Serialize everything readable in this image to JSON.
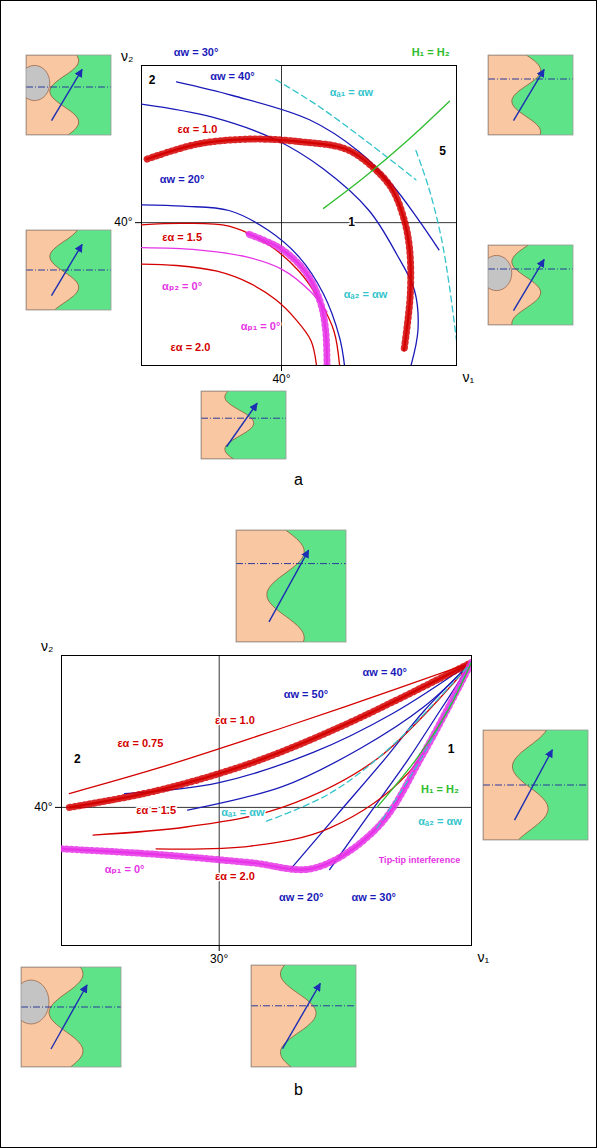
{
  "chart_data": [
    {
      "type": "line",
      "panel": "a",
      "xlabel": "ν₁",
      "ylabel": "ν₂",
      "xlim": [
        20,
        65
      ],
      "ylim": [
        20,
        62
      ],
      "xticks": [
        {
          "value": 40,
          "label": "40°"
        }
      ],
      "yticks": [
        {
          "value": 40,
          "label": "40°"
        }
      ],
      "grid": true,
      "series": [
        {
          "name": "αw = 40°",
          "color": "#1a1ab8",
          "line_style": "solid",
          "x": [
            25,
            33,
            44,
            51,
            55.8,
            59.5,
            62.5
          ],
          "values": [
            59.7,
            57.8,
            54.4,
            50,
            45.3,
            40.5,
            36.2
          ],
          "label_x": 33,
          "label_y": 60.5
        },
        {
          "name": "αw = 30°",
          "color": "#1a1ab8",
          "line_style": "solid",
          "x": [
            20,
            30,
            39.2,
            46,
            52.5,
            56.5,
            59,
            59.5,
            58.5
          ],
          "values": [
            56.6,
            54.8,
            51.6,
            47.5,
            41.7,
            35.5,
            30.5,
            25,
            20
          ],
          "label_x": 27.8,
          "label_y": 63.8
        },
        {
          "name": "αw = 20°",
          "color": "#1a1ab8",
          "line_style": "solid",
          "x": [
            20,
            26,
            32.5,
            38,
            42.5,
            46,
            48.3,
            49
          ],
          "values": [
            42.5,
            42.3,
            41.7,
            39,
            35.2,
            30,
            23.9,
            20
          ],
          "label_x": 25.8,
          "label_y": 46
        },
        {
          "name": "εα = 1.0",
          "color": "#d40000",
          "line_style": "hatched",
          "x": [
            20.8,
            28,
            35.8,
            43,
            49.2,
            53,
            55.8,
            57.5,
            58.3,
            58.4,
            57.5
          ],
          "values": [
            48.9,
            51,
            51.7,
            51.3,
            50.3,
            47.8,
            44.7,
            40.5,
            36.3,
            30,
            22.1
          ],
          "label_x": 28,
          "label_y": 53
        },
        {
          "name": "εα = 1.5",
          "color": "#d40000",
          "line_style": "solid",
          "x": [
            20,
            26,
            32.5,
            38,
            42.5,
            45.5,
            47.5,
            48.3
          ],
          "values": [
            39.7,
            39.9,
            39.5,
            37,
            33.2,
            29,
            24.8,
            20
          ],
          "label_x": 25.8,
          "label_y": 37.9
        },
        {
          "name": "εα = 2.0",
          "color": "#d40000",
          "line_style": "solid",
          "x": [
            20,
            25,
            30.8,
            35.5,
            39.2,
            42,
            44.2,
            45
          ],
          "values": [
            34.2,
            34,
            33.2,
            31.5,
            29.2,
            26.5,
            23.5,
            20
          ],
          "label_x": 27,
          "label_y": 22.5
        },
        {
          "name": "αₚ₂ = 0°",
          "color": "#e633e6",
          "line_style": "solid",
          "x": [
            20,
            28,
            35,
            40,
            44,
            46.5
          ],
          "values": [
            36.5,
            36.2,
            35.2,
            33.5,
            30.5,
            27.5
          ],
          "label_x": 25.8,
          "label_y": 31
        },
        {
          "name": "αₚ₁ = 0°",
          "color": "#e633e6",
          "line_style": "hatched",
          "x": [
            46.5,
            46.3,
            45.5,
            43.5,
            40,
            35
          ],
          "values": [
            20,
            25,
            29,
            33,
            36.3,
            38.5
          ],
          "label_x": 37,
          "label_y": 25.5
        },
        {
          "name": "αₐ₁ = αw",
          "color": "#33c4cc",
          "line_style": "dashed",
          "x": [
            39.2,
            45,
            52,
            59.2
          ],
          "values": [
            60,
            56.5,
            51.5,
            46
          ],
          "label_x": 50,
          "label_y": 58.2
        },
        {
          "name": "αₐ₂ = αw",
          "color": "#33c4cc",
          "line_style": "dashed",
          "x": [
            59.2,
            61,
            62.8,
            64,
            65
          ],
          "values": [
            50.1,
            45,
            38,
            31,
            23.5
          ],
          "label_x": 52,
          "label_y": 30
        },
        {
          "name": "H₁ = H₂",
          "color": "#2ebd2e",
          "line_style": "solid",
          "x": [
            46,
            52,
            58,
            64
          ],
          "values": [
            42,
            46.5,
            51.5,
            57
          ],
          "label_x": 61.3,
          "label_y": 63.8
        }
      ],
      "annotations": [
        {
          "text": "1",
          "x": 50,
          "y": 40,
          "color": "#000000"
        },
        {
          "text": "2",
          "x": 21.5,
          "y": 60,
          "color": "#000000"
        },
        {
          "text": "5",
          "x": 63,
          "y": 50,
          "color": "#000000"
        }
      ]
    },
    {
      "type": "line",
      "panel": "b",
      "xlabel": "ν₁",
      "ylabel": "ν₂",
      "xlim": [
        20,
        46
      ],
      "ylim": [
        30,
        51
      ],
      "xticks": [
        {
          "value": 30,
          "label": "30°"
        }
      ],
      "yticks": [
        {
          "value": 40,
          "label": "40°"
        }
      ],
      "grid": true,
      "series": [
        {
          "name": "αw = 50°",
          "color": "#1a1ab8",
          "line_style": "solid",
          "x": [
            24,
            30,
            36,
            41,
            46
          ],
          "values": [
            41,
            41.8,
            44,
            46.8,
            50.5
          ],
          "label_x": 35.5,
          "label_y": 48.2
        },
        {
          "name": "αw = 40°",
          "color": "#1a1ab8",
          "line_style": "solid",
          "x": [
            28,
            34,
            39,
            43,
            46
          ],
          "values": [
            39.8,
            41.5,
            44.3,
            47.3,
            50.5
          ],
          "label_x": 40.5,
          "label_y": 49.8
        },
        {
          "name": "αw = 30°",
          "color": "#1a1ab8",
          "line_style": "solid",
          "x": [
            37,
            39.5,
            42,
            44,
            46
          ],
          "values": [
            35.5,
            39.5,
            43.5,
            47,
            50.5
          ],
          "label_x": 39.8,
          "label_y": 33.5
        },
        {
          "name": "αw = 20°",
          "color": "#1a1ab8",
          "line_style": "solid",
          "x": [
            34.5,
            37.5,
            40.5,
            43,
            46
          ],
          "values": [
            35.5,
            39.5,
            43.5,
            47,
            50.5
          ],
          "label_x": 35.2,
          "label_y": 33.5
        },
        {
          "name": "εα = 0.75",
          "color": "#d40000",
          "line_style": "solid",
          "x": [
            20.5,
            26,
            32,
            38,
            46
          ],
          "values": [
            41,
            42.8,
            45,
            47.3,
            50.5
          ],
          "label_x": 25,
          "label_y": 44.6
        },
        {
          "name": "εα = 1.0",
          "color": "#d40000",
          "line_style": "hatched",
          "x": [
            20.5,
            26,
            32,
            38,
            46
          ],
          "values": [
            40,
            41.2,
            43.2,
            46,
            50.5
          ],
          "label_x": 31,
          "label_y": 46.3
        },
        {
          "name": "εα = 1.5",
          "color": "#d40000",
          "line_style": "solid",
          "x": [
            22,
            28,
            34,
            40,
            46
          ],
          "values": [
            38,
            38.6,
            40,
            43.5,
            50.5
          ],
          "label_x": 26,
          "label_y": 39.8
        },
        {
          "name": "εα = 2.0",
          "color": "#d40000",
          "line_style": "solid",
          "x": [
            26,
            32,
            37,
            42,
            46
          ],
          "values": [
            37,
            37.2,
            38.5,
            42.5,
            50.5
          ],
          "label_x": 31,
          "label_y": 35
        },
        {
          "name": "αₚ₁ = 0°",
          "color": "#e633e6",
          "line_style": "hatched",
          "x": [
            20,
            26,
            32,
            36,
            40,
            43,
            46
          ],
          "values": [
            37,
            36.6,
            36,
            35.6,
            38.5,
            44,
            50.5
          ],
          "label_x": 24,
          "label_y": 35.5
        },
        {
          "name": "αₐ₁ = αw",
          "color": "#33c4cc",
          "line_style": "dashed",
          "x": [
            33,
            37,
            41,
            46
          ],
          "values": [
            39,
            41,
            44.5,
            50.5
          ],
          "label_x": 31.5,
          "label_y": 39.6
        },
        {
          "name": "αₐ₂ = αw",
          "color": "#33c4cc",
          "line_style": "dashed",
          "x": [
            40,
            42,
            44,
            46
          ],
          "values": [
            38.5,
            42,
            46,
            50.5
          ],
          "label_x": 44,
          "label_y": 39
        },
        {
          "name": "H₁ = H₂",
          "color": "#2ebd2e",
          "line_style": "solid",
          "x": [
            40,
            42.5,
            44.5,
            46
          ],
          "values": [
            40,
            43.5,
            47,
            50.5
          ],
          "label_x": 44,
          "label_y": 41.3
        }
      ],
      "annotations": [
        {
          "text": "Tip-tip interference",
          "x": 42.7,
          "y": 36.2,
          "color": "#e633e6"
        },
        {
          "text": "1",
          "x": 44.7,
          "y": 44.2,
          "color": "#000000"
        },
        {
          "text": "2",
          "x": 21,
          "y": 43.5,
          "color": "#000000"
        }
      ]
    }
  ]
}
